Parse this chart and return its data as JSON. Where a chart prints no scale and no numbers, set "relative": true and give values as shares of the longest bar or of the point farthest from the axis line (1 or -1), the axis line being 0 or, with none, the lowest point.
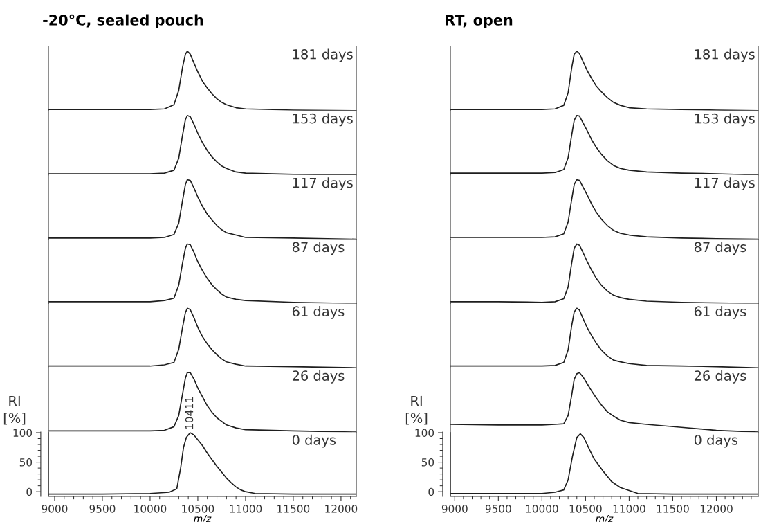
{
  "chart_data": [
    {
      "type": "line",
      "title": "-20°C, sealed pouch",
      "color": "#1e1e1e",
      "relative": true,
      "x": [
        8940,
        9500,
        10000,
        10150,
        10250,
        10300,
        10340,
        10370,
        10390,
        10420,
        10460,
        10500,
        10550,
        10600,
        10650,
        10700,
        10750,
        10800,
        10900,
        11000,
        11500,
        12160
      ],
      "values": [
        0.02,
        0.02,
        0.02,
        0.03,
        0.1,
        0.34,
        0.73,
        0.95,
        1,
        0.95,
        0.8,
        0.65,
        0.49,
        0.38,
        0.28,
        0.2,
        0.14,
        0.1,
        0.05,
        0.03,
        0.01,
        0
      ],
      "xlim": [
        8935,
        12160
      ],
      "annotations": [
        "181 days"
      ]
    },
    {
      "type": "line",
      "color": "#1e1e1e",
      "relative": true,
      "x": [
        8940,
        9500,
        10000,
        10150,
        10250,
        10300,
        10340,
        10370,
        10390,
        10420,
        10460,
        10500,
        10550,
        10600,
        10650,
        10700,
        10750,
        10800,
        10900,
        11000,
        11500,
        12160
      ],
      "values": [
        0.02,
        0.02,
        0.02,
        0.03,
        0.08,
        0.28,
        0.67,
        0.93,
        1,
        0.98,
        0.85,
        0.7,
        0.54,
        0.41,
        0.3,
        0.22,
        0.15,
        0.11,
        0.05,
        0.03,
        0.01,
        0
      ],
      "xlim": [
        8935,
        12160
      ],
      "annotations": [
        "153 days"
      ]
    },
    {
      "type": "line",
      "color": "#1e1e1e",
      "relative": true,
      "x": [
        8940,
        9500,
        10000,
        10150,
        10250,
        10300,
        10340,
        10370,
        10390,
        10420,
        10460,
        10500,
        10550,
        10600,
        10650,
        10700,
        10750,
        10800,
        10900,
        11000,
        11500,
        12160
      ],
      "values": [
        0.02,
        0.02,
        0.02,
        0.03,
        0.08,
        0.27,
        0.65,
        0.92,
        1,
        0.99,
        0.86,
        0.71,
        0.55,
        0.42,
        0.32,
        0.23,
        0.16,
        0.11,
        0.07,
        0.03,
        0.02,
        0
      ],
      "xlim": [
        8935,
        12160
      ],
      "annotations": [
        "117 days"
      ]
    },
    {
      "type": "line",
      "color": "#1e1e1e",
      "relative": true,
      "x": [
        8940,
        9500,
        10000,
        10150,
        10250,
        10300,
        10340,
        10370,
        10390,
        10420,
        10460,
        10500,
        10550,
        10600,
        10650,
        10700,
        10750,
        10800,
        10900,
        11000,
        11500,
        12160
      ],
      "values": [
        0.03,
        0.03,
        0.03,
        0.05,
        0.09,
        0.31,
        0.68,
        0.93,
        1,
        0.99,
        0.86,
        0.7,
        0.55,
        0.42,
        0.31,
        0.23,
        0.16,
        0.11,
        0.07,
        0.05,
        0.02,
        0
      ],
      "xlim": [
        8935,
        12160
      ],
      "annotations": [
        "87 days"
      ]
    },
    {
      "type": "line",
      "color": "#1e1e1e",
      "relative": true,
      "x": [
        8940,
        9500,
        10000,
        10150,
        10250,
        10300,
        10340,
        10370,
        10390,
        10420,
        10460,
        10500,
        10550,
        10600,
        10650,
        10700,
        10750,
        10800,
        10900,
        11000,
        11500,
        12160
      ],
      "values": [
        0.03,
        0.03,
        0.03,
        0.05,
        0.09,
        0.31,
        0.68,
        0.93,
        1,
        0.98,
        0.84,
        0.68,
        0.52,
        0.4,
        0.3,
        0.22,
        0.15,
        0.1,
        0.06,
        0.03,
        0.02,
        0
      ],
      "xlim": [
        8935,
        12160
      ],
      "annotations": [
        "61 days"
      ]
    },
    {
      "type": "line",
      "color": "#1e1e1e",
      "relative": true,
      "x": [
        8940,
        9500,
        10000,
        10150,
        10250,
        10300,
        10340,
        10370,
        10390,
        10420,
        10460,
        10500,
        10550,
        10600,
        10650,
        10700,
        10750,
        10800,
        10900,
        11000,
        11500,
        12160
      ],
      "values": [
        0.02,
        0.02,
        0.02,
        0.03,
        0.09,
        0.28,
        0.64,
        0.91,
        1,
        1,
        0.89,
        0.74,
        0.59,
        0.44,
        0.33,
        0.24,
        0.18,
        0.12,
        0.07,
        0.04,
        0.02,
        0
      ],
      "xlim": [
        8935,
        12160
      ],
      "annotations": [
        "26 days"
      ]
    },
    {
      "type": "line",
      "color": "#1e1e1e",
      "x": [
        8940,
        9500,
        10000,
        10200,
        10280,
        10320,
        10350,
        10380,
        10420,
        10460,
        10500,
        10550,
        10600,
        10650,
        10700,
        10750,
        10800,
        10850,
        10900,
        10950,
        11000,
        11100,
        11500,
        12160
      ],
      "values": [
        -4,
        -4,
        -3,
        -1,
        5,
        40,
        75,
        92,
        100,
        96,
        88,
        78,
        65,
        54,
        43,
        33,
        23,
        15,
        8,
        3,
        0,
        -3,
        -4,
        -4
      ],
      "xlim": [
        8935,
        12160
      ],
      "ylim": [
        -8,
        101
      ],
      "xticks": [
        9000,
        9500,
        10000,
        10500,
        11000,
        11500,
        12000
      ],
      "yticks": [
        0,
        50,
        100
      ],
      "xlabel": "m/z",
      "ylabel": "RI\n[%]",
      "annotations": [
        "0 days",
        {
          "text": "10411",
          "x": 10420,
          "y": 100
        }
      ]
    },
    {
      "type": "line",
      "title": "RT, open",
      "color": "#1e1e1e",
      "relative": true,
      "x": [
        8950,
        9500,
        10000,
        10150,
        10250,
        10300,
        10340,
        10370,
        10400,
        10430,
        10470,
        10520,
        10570,
        10620,
        10680,
        10750,
        10820,
        10900,
        11000,
        11200,
        11600,
        12000,
        12480
      ],
      "values": [
        0.02,
        0.02,
        0.02,
        0.03,
        0.09,
        0.3,
        0.71,
        0.95,
        1,
        0.96,
        0.83,
        0.67,
        0.54,
        0.42,
        0.32,
        0.22,
        0.14,
        0.09,
        0.05,
        0.03,
        0.02,
        0.01,
        0
      ],
      "xlim": [
        8950,
        12480
      ],
      "annotations": [
        "181 days"
      ]
    },
    {
      "type": "line",
      "color": "#1e1e1e",
      "relative": true,
      "x": [
        8950,
        9500,
        10000,
        10150,
        10250,
        10300,
        10340,
        10370,
        10400,
        10430,
        10470,
        10520,
        10570,
        10620,
        10680,
        10750,
        10820,
        10900,
        11000,
        11200,
        11600,
        12000,
        12480
      ],
      "values": [
        0.03,
        0.03,
        0.03,
        0.04,
        0.09,
        0.29,
        0.66,
        0.92,
        1,
        0.99,
        0.88,
        0.74,
        0.59,
        0.47,
        0.35,
        0.24,
        0.16,
        0.11,
        0.08,
        0.05,
        0.03,
        0.02,
        0
      ],
      "xlim": [
        8950,
        12480
      ],
      "annotations": [
        "153 days"
      ]
    },
    {
      "type": "line",
      "color": "#1e1e1e",
      "relative": true,
      "x": [
        8950,
        9500,
        10000,
        10150,
        10250,
        10300,
        10340,
        10370,
        10400,
        10430,
        10470,
        10520,
        10570,
        10620,
        10680,
        10750,
        10820,
        10900,
        11000,
        11200,
        11600,
        12000,
        12480
      ],
      "values": [
        0.03,
        0.03,
        0.03,
        0.04,
        0.09,
        0.29,
        0.66,
        0.92,
        1,
        0.99,
        0.88,
        0.74,
        0.59,
        0.46,
        0.34,
        0.23,
        0.15,
        0.1,
        0.07,
        0.04,
        0.02,
        0.01,
        0
      ],
      "xlim": [
        8950,
        12480
      ],
      "annotations": [
        "117 days"
      ]
    },
    {
      "type": "line",
      "color": "#1e1e1e",
      "relative": true,
      "x": [
        8950,
        9500,
        10000,
        10150,
        10250,
        10300,
        10340,
        10370,
        10400,
        10430,
        10470,
        10520,
        10570,
        10620,
        10680,
        10750,
        10820,
        10900,
        11000,
        11200,
        11600,
        12000,
        12480
      ],
      "values": [
        0.03,
        0.03,
        0.02,
        0.03,
        0.08,
        0.28,
        0.67,
        0.93,
        1,
        0.98,
        0.86,
        0.7,
        0.56,
        0.43,
        0.31,
        0.21,
        0.14,
        0.1,
        0.07,
        0.04,
        0.02,
        0.01,
        0
      ],
      "xlim": [
        8950,
        12480
      ],
      "annotations": [
        "87 days"
      ]
    },
    {
      "type": "line",
      "color": "#1e1e1e",
      "relative": true,
      "x": [
        8950,
        9500,
        10000,
        10150,
        10250,
        10300,
        10340,
        10370,
        10400,
        10430,
        10470,
        10520,
        10570,
        10620,
        10680,
        10750,
        10820,
        10900,
        11000,
        11200,
        11600,
        12000,
        12480
      ],
      "values": [
        0.03,
        0.03,
        0.03,
        0.04,
        0.09,
        0.3,
        0.7,
        0.94,
        1,
        0.97,
        0.83,
        0.67,
        0.54,
        0.42,
        0.3,
        0.2,
        0.13,
        0.1,
        0.07,
        0.04,
        0.03,
        0.02,
        0
      ],
      "xlim": [
        8950,
        12480
      ],
      "annotations": [
        "61 days"
      ]
    },
    {
      "type": "line",
      "color": "#1e1e1e",
      "relative": true,
      "x": [
        8950,
        9500,
        10000,
        10150,
        10250,
        10300,
        10340,
        10370,
        10400,
        10430,
        10470,
        10520,
        10570,
        10620,
        10680,
        10750,
        10820,
        10900,
        11000,
        11200,
        11600,
        12000,
        12480
      ],
      "values": [
        0.13,
        0.12,
        0.12,
        0.13,
        0.14,
        0.28,
        0.61,
        0.89,
        0.98,
        1,
        0.93,
        0.81,
        0.69,
        0.58,
        0.46,
        0.34,
        0.27,
        0.2,
        0.16,
        0.13,
        0.08,
        0.03,
        0
      ],
      "xlim": [
        8950,
        12480
      ],
      "annotations": [
        "26 days"
      ]
    },
    {
      "type": "line",
      "color": "#1e1e1e",
      "x": [
        8950,
        9500,
        10000,
        10150,
        10250,
        10300,
        10350,
        10400,
        10440,
        10480,
        10550,
        10600,
        10700,
        10800,
        10900,
        11000,
        11100,
        11500,
        12000,
        12480
      ],
      "values": [
        -3,
        -3,
        -3,
        -1,
        3,
        20,
        60,
        92,
        98,
        92,
        70,
        55,
        35,
        17,
        7,
        2,
        -3,
        -4,
        -4,
        -4
      ],
      "xlim": [
        8950,
        12480
      ],
      "ylim": [
        -8,
        101
      ],
      "xticks": [
        9000,
        9500,
        10000,
        10500,
        11000,
        11500,
        12000
      ],
      "yticks": [
        0,
        50,
        100
      ],
      "xlabel": "m/z",
      "ylabel": "RI\n[%]",
      "annotations": [
        "0 days"
      ]
    }
  ]
}
